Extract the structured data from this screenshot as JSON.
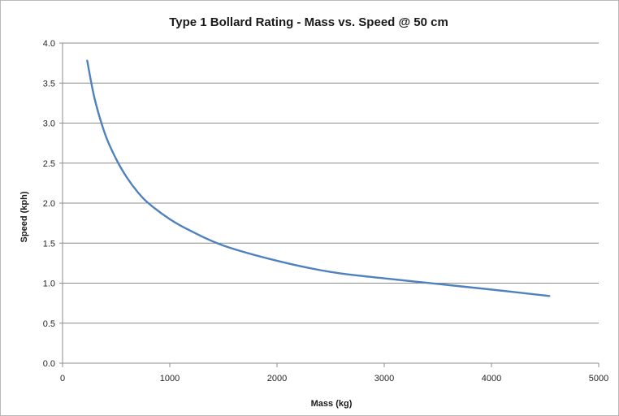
{
  "chart_data": {
    "type": "line",
    "title": "Type 1 Bollard Rating - Mass vs. Speed @ 50 cm",
    "xlabel": "Mass (kg)",
    "ylabel": "Speed (kph)",
    "xlim": [
      0,
      5000
    ],
    "ylim": [
      0,
      4.0
    ],
    "x_ticks": [
      "0",
      "1000",
      "2000",
      "3000",
      "4000",
      "5000"
    ],
    "y_ticks": [
      "0.0",
      "0.5",
      "1.0",
      "1.5",
      "2.0",
      "2.5",
      "3.0",
      "3.5",
      "4.0"
    ],
    "grid": "horizontal",
    "legend": "none",
    "series": [
      {
        "color": "#4f81bd",
        "x": [
          230,
          300,
          400,
          500,
          600,
          700,
          800,
          1000,
          1200,
          1500,
          2000,
          2500,
          3000,
          3500,
          4000,
          4540
        ],
        "y": [
          3.78,
          3.3,
          2.85,
          2.55,
          2.32,
          2.14,
          2.0,
          1.8,
          1.65,
          1.47,
          1.28,
          1.14,
          1.06,
          0.99,
          0.92,
          0.84
        ]
      }
    ]
  }
}
